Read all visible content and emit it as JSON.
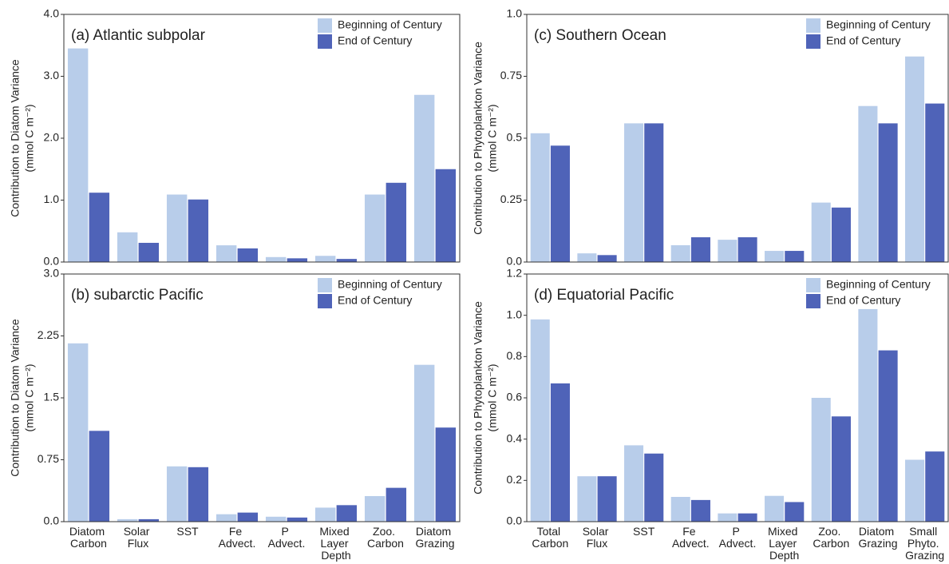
{
  "chart_data": [
    {
      "type": "bar",
      "title": "(a) Atlantic subpolar",
      "y_label": "Contribution to Diatom Variance",
      "y_label_units": "(mmol C m⁻²)",
      "categories": [
        null,
        null,
        null,
        null,
        null,
        null,
        null,
        null
      ],
      "series": [
        {
          "name": "Beginning of Century",
          "color": "#b8cdea",
          "values": [
            3.45,
            0.48,
            1.09,
            0.27,
            0.08,
            0.1,
            1.09,
            2.7
          ]
        },
        {
          "name": "End of Century",
          "color": "#4f63b8",
          "values": [
            1.12,
            0.31,
            1.01,
            0.22,
            0.06,
            0.05,
            1.28,
            1.5
          ]
        }
      ],
      "ylim": [
        0,
        4
      ],
      "yticks": [
        {
          "value": 0,
          "label": "0.0"
        },
        {
          "value": 1,
          "label": "1.0"
        },
        {
          "value": 2,
          "label": "2.0"
        },
        {
          "value": 3,
          "label": "3.0"
        },
        {
          "value": 4,
          "label": "4.0"
        }
      ],
      "legend": "upper right"
    },
    {
      "type": "bar",
      "title": "(b) subarctic Pacific",
      "y_label": "Contribution to Diatom Variance",
      "y_label_units": "(mmol C m⁻²)",
      "categories": [
        "Diatom Carbon",
        "Solar Flux",
        "SST",
        "Fe Advect.",
        "P Advect.",
        "Mixed Layer Depth",
        "Zoo. Carbon",
        "Diatom Grazing"
      ],
      "series": [
        {
          "name": "Beginning of Century",
          "color": "#b8cdea",
          "values": [
            2.16,
            0.03,
            0.67,
            0.09,
            0.06,
            0.17,
            0.31,
            1.9
          ]
        },
        {
          "name": "End of Century",
          "color": "#4f63b8",
          "values": [
            1.1,
            0.03,
            0.66,
            0.11,
            0.05,
            0.2,
            0.41,
            1.14
          ]
        }
      ],
      "ylim": [
        0,
        3
      ],
      "yticks": [
        {
          "value": 0,
          "label": "0.0"
        },
        0.75,
        1.5,
        2.25,
        {
          "value": 3,
          "label": "3.0"
        }
      ],
      "legend": "upper right"
    },
    {
      "type": "bar",
      "title": "(c) Southern Ocean",
      "y_label": "Contribution to Phytoplankton Variance",
      "y_label_units": "(mmol C m⁻²)",
      "categories": [
        null,
        null,
        null,
        null,
        null,
        null,
        null,
        null,
        null
      ],
      "series": [
        {
          "name": "Beginning of Century",
          "color": "#b8cdea",
          "values": [
            0.52,
            0.035,
            0.56,
            0.068,
            0.09,
            0.045,
            0.24,
            0.63,
            0.83
          ]
        },
        {
          "name": "End of Century",
          "color": "#4f63b8",
          "values": [
            0.47,
            0.028,
            0.56,
            0.1,
            0.1,
            0.045,
            0.22,
            0.56,
            0.64
          ]
        }
      ],
      "ylim": [
        0,
        1
      ],
      "yticks": [
        {
          "value": 0,
          "label": "0.0"
        },
        0.25,
        0.5,
        0.75,
        {
          "value": 1,
          "label": "1.0"
        }
      ],
      "legend": "upper right"
    },
    {
      "type": "bar",
      "title": "(d) Equatorial Pacific",
      "y_label": "Contribution to Phytoplankton Variance",
      "y_label_units": "(mmol C m⁻²)",
      "categories": [
        "Total Carbon",
        "Solar Flux",
        "SST",
        "Fe Advect.",
        "P Advect.",
        "Mixed Layer Depth",
        "Zoo. Carbon",
        "Diatom Grazing",
        "Small Phyto. Grazing"
      ],
      "series": [
        {
          "name": "Beginning of Century",
          "color": "#b8cdea",
          "values": [
            0.98,
            0.22,
            0.37,
            0.12,
            0.04,
            0.125,
            0.6,
            1.03,
            0.3
          ]
        },
        {
          "name": "End of Century",
          "color": "#4f63b8",
          "values": [
            0.67,
            0.22,
            0.33,
            0.105,
            0.04,
            0.095,
            0.51,
            0.83,
            0.34
          ]
        }
      ],
      "ylim": [
        0,
        1.2
      ],
      "yticks": [
        {
          "value": 0,
          "label": "0.0"
        },
        0.2,
        0.4,
        0.6,
        0.8,
        {
          "value": 1,
          "label": "1.0"
        },
        1.2
      ],
      "legend": "upper right"
    }
  ]
}
